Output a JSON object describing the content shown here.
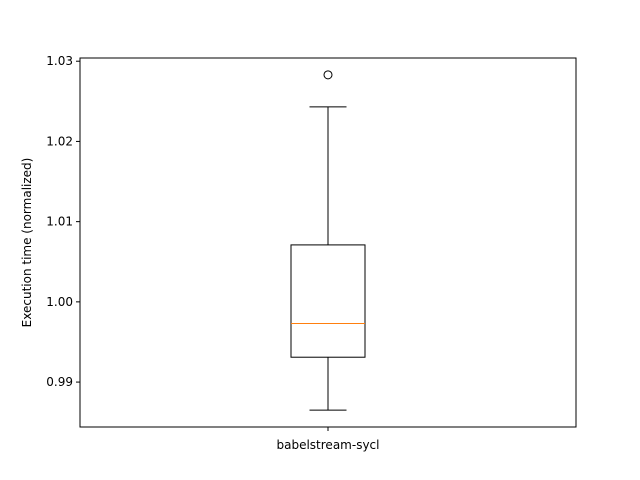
{
  "chart_data": {
    "type": "box",
    "title": "",
    "xlabel": "",
    "ylabel": "Execution time (normalized)",
    "categories": [
      "babelstream-sycl"
    ],
    "boxes": [
      {
        "label": "babelstream-sycl",
        "whisker_low": 0.9865,
        "q1": 0.9931,
        "median": 0.9973,
        "q3": 1.0071,
        "whisker_high": 1.0243,
        "outliers": [
          1.0283
        ]
      }
    ],
    "ylim": [
      0.9844,
      1.0304
    ],
    "yticks": [
      0.99,
      1.0,
      1.01,
      1.02,
      1.03
    ],
    "ytick_labels": [
      "0.99",
      "1.00",
      "1.01",
      "1.02",
      "1.03"
    ],
    "grid": false,
    "colors": {
      "median": "#ff7f0e",
      "box": "#000000",
      "outlier": "#000000"
    }
  }
}
